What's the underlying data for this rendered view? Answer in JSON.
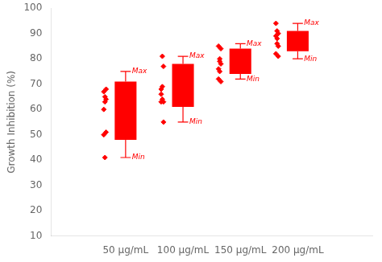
{
  "chart_data": {
    "type": "box",
    "ylabel": "Growth Inhibition (%)",
    "categories": [
      "50 μg/mL",
      "100 μg/mL",
      "150 μg/mL",
      "200 μg/mL"
    ],
    "boxes": [
      {
        "q1": 48,
        "q3": 71,
        "whisker_low": 41,
        "whisker_high": 75,
        "points": [
          60,
          68,
          65,
          67,
          64,
          63,
          50,
          51,
          41
        ]
      },
      {
        "q1": 61,
        "q3": 78,
        "whisker_low": 55,
        "whisker_high": 81,
        "points": [
          66,
          77,
          69,
          68,
          63,
          64,
          63,
          55,
          81
        ]
      },
      {
        "q1": 74,
        "q3": 84,
        "whisker_low": 72,
        "whisker_high": 86,
        "points": [
          85,
          84,
          79,
          76,
          78,
          75,
          72,
          71,
          80
        ]
      },
      {
        "q1": 83,
        "q3": 91,
        "whisker_low": 80,
        "whisker_high": 94,
        "points": [
          94,
          90,
          91,
          89,
          85,
          86,
          82,
          81,
          88
        ]
      }
    ],
    "annotations": [
      {
        "text": "Max",
        "x": "50 μg/mL",
        "y": 75
      },
      {
        "text": "Min",
        "x": "50 μg/mL",
        "y": 41
      },
      {
        "text": "Max",
        "x": "100 μg/mL",
        "y": 81
      },
      {
        "text": "Min",
        "x": "100 μg/mL",
        "y": 55
      },
      {
        "text": "Max",
        "x": "150 μg/mL",
        "y": 86
      },
      {
        "text": "Min",
        "x": "150 μg/mL",
        "y": 72
      },
      {
        "text": "Max",
        "x": "200 μg/mL",
        "y": 94
      },
      {
        "text": "Min",
        "x": "200 μg/mL",
        "y": 80
      }
    ],
    "color": "#FF0000",
    "marker": "diamond",
    "ylim": [
      10,
      100
    ],
    "yticks": [
      10,
      20,
      30,
      40,
      50,
      60,
      70,
      80,
      90,
      100
    ],
    "grid": false
  }
}
